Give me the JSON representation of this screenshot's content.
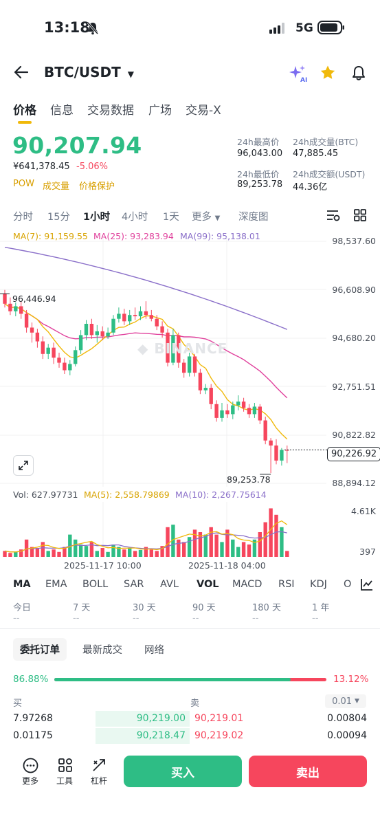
{
  "status_bar": {
    "time": "13:18",
    "network": "5G"
  },
  "header": {
    "pair": "BTC/USDT"
  },
  "tabs": [
    "价格",
    "信息",
    "交易数据",
    "广场",
    "交易-X"
  ],
  "ticker": {
    "last_price": "90,207.94",
    "cny_price": "¥641,378.45",
    "change_pct": "-5.06%",
    "tags": [
      "POW",
      "成交量",
      "价格保护"
    ],
    "high_label": "24h最高价",
    "high_value": "96,043.00",
    "vol_btc_label": "24h成交量(BTC)",
    "vol_btc_value": "47,885.45",
    "low_label": "24h最低价",
    "low_value": "89,253.78",
    "vol_usdt_label": "24h成交额(USDT)",
    "vol_usdt_value": "44.36亿"
  },
  "timeframes": [
    "分时",
    "15分",
    "1小时",
    "4小时",
    "1天",
    "更多",
    "深度图"
  ],
  "active_timeframe": "1小时",
  "ma_legend": {
    "ma7": "MA(7): 91,159.55",
    "ma25": "MA(25): 93,283.94",
    "ma99": "MA(99): 95,138.01"
  },
  "price_axis": [
    "98,537.60",
    "96,608.90",
    "94,680.20",
    "92,751.51",
    "90,822.82",
    "88,894.12"
  ],
  "chart_labels": {
    "high_marker": "96,446.94",
    "low_marker": "89,253.78",
    "current_price": "90,226.92",
    "watermark": "BINANCE"
  },
  "volume_legend": {
    "vol": "Vol: 627.97731",
    "ma5": "MA(5): 2,558.79869",
    "ma10": "MA(10): 2,267.75614"
  },
  "volume_axis": [
    "4.61K",
    "397"
  ],
  "time_axis": [
    "2025-11-17 10:00",
    "2025-11-18 04:00"
  ],
  "indicators": [
    "MA",
    "EMA",
    "BOLL",
    "SAR",
    "AVL",
    "VOL",
    "MACD",
    "RSI",
    "KDJ",
    "O"
  ],
  "periods": [
    {
      "label": "今日",
      "value": "--"
    },
    {
      "label": "7 天",
      "value": "--"
    },
    {
      "label": "30 天",
      "value": "--"
    },
    {
      "label": "90 天",
      "value": "--"
    },
    {
      "label": "180 天",
      "value": "--"
    },
    {
      "label": "1 年",
      "value": "--"
    }
  ],
  "order_tabs": [
    "委托订单",
    "最新成交",
    "网络"
  ],
  "order_book": {
    "buy_pct": "86.88%",
    "sell_pct": "13.12%",
    "buy_ratio": 0.8688,
    "buy_label": "买",
    "sell_label": "卖",
    "precision": "0.01",
    "rows": [
      {
        "bid_qty": "7.97268",
        "bid_price": "90,219.00",
        "ask_price": "90,219.01",
        "ask_qty": "0.00804"
      },
      {
        "bid_qty": "0.01175",
        "bid_price": "90,218.47",
        "ask_price": "90,219.02",
        "ask_qty": "0.00094"
      }
    ]
  },
  "bottom_bar": {
    "more": "更多",
    "tools": "工具",
    "leverage": "杠杆",
    "buy": "买入",
    "sell": "卖出"
  },
  "colors": {
    "up": "#2ebd85",
    "down": "#f6465d",
    "accent": "#f0b90b",
    "ma7": "#f0b90b",
    "ma25": "#e0409c",
    "ma99": "#8a6fc9"
  },
  "chart_data": {
    "type": "candlestick",
    "interval": "1h",
    "y_axis": {
      "min": 88894.12,
      "max": 98537.6
    },
    "candles": [
      [
        96450,
        96050,
        96600,
        95900
      ],
      [
        96050,
        95750,
        96300,
        95600
      ],
      [
        95750,
        95950,
        96100,
        95550
      ],
      [
        95950,
        95650,
        96150,
        95450
      ],
      [
        95650,
        95100,
        95800,
        94900
      ],
      [
        95100,
        94900,
        95300,
        94500
      ],
      [
        94900,
        94550,
        95050,
        94300
      ],
      [
        94550,
        94050,
        94750,
        93850
      ],
      [
        94050,
        94300,
        94450,
        93850
      ],
      [
        94300,
        93900,
        94500,
        93650
      ],
      [
        93900,
        93700,
        94100,
        93500
      ],
      [
        93700,
        93400,
        93900,
        93250
      ],
      [
        93400,
        93650,
        93800,
        93200
      ],
      [
        93650,
        94200,
        94350,
        93550
      ],
      [
        94200,
        94800,
        95000,
        94050
      ],
      [
        94800,
        95250,
        95400,
        94600
      ],
      [
        95250,
        94800,
        95450,
        94650
      ],
      [
        94800,
        94950,
        95200,
        94500
      ],
      [
        94950,
        94750,
        95150,
        94600
      ],
      [
        94750,
        94900,
        95100,
        94650
      ],
      [
        94900,
        95450,
        95600,
        94800
      ],
      [
        95450,
        95650,
        95900,
        95300
      ],
      [
        95650,
        95350,
        95850,
        95200
      ],
      [
        95350,
        95600,
        95800,
        95200
      ],
      [
        95600,
        95550,
        95900,
        95400
      ],
      [
        95550,
        95750,
        95950,
        95400
      ],
      [
        95750,
        95600,
        96150,
        95450
      ],
      [
        95600,
        95450,
        95800,
        95350
      ],
      [
        95450,
        95150,
        95600,
        95000
      ],
      [
        95150,
        94900,
        95350,
        94700
      ],
      [
        94900,
        93700,
        95050,
        93550
      ],
      [
        93700,
        94800,
        95050,
        93600
      ],
      [
        94800,
        93700,
        94900,
        93500
      ],
      [
        93700,
        93300,
        93850,
        93100
      ],
      [
        93300,
        93950,
        94100,
        93150
      ],
      [
        93950,
        93300,
        94050,
        93150
      ],
      [
        93300,
        92600,
        93450,
        92450
      ],
      [
        92600,
        92700,
        92850,
        92450
      ],
      [
        92700,
        92050,
        92850,
        91850
      ],
      [
        92050,
        91500,
        92200,
        91350
      ],
      [
        91500,
        91800,
        92100,
        91350
      ],
      [
        91800,
        91650,
        92050,
        91500
      ],
      [
        91650,
        92000,
        92150,
        91450
      ],
      [
        92000,
        92150,
        92400,
        91800
      ],
      [
        92150,
        91900,
        92300,
        91750
      ],
      [
        91900,
        91650,
        92050,
        91500
      ],
      [
        91650,
        91950,
        92100,
        91500
      ],
      [
        91950,
        91400,
        92050,
        91250
      ],
      [
        91400,
        90600,
        91550,
        90450
      ],
      [
        90600,
        90400,
        90700,
        89300
      ],
      [
        90400,
        89800,
        90650,
        89650
      ],
      [
        89800,
        90226.92,
        90300,
        89600
      ],
      [
        90226.92,
        90207.94,
        90400,
        89700
      ]
    ],
    "volume_max_label": 4610
  }
}
